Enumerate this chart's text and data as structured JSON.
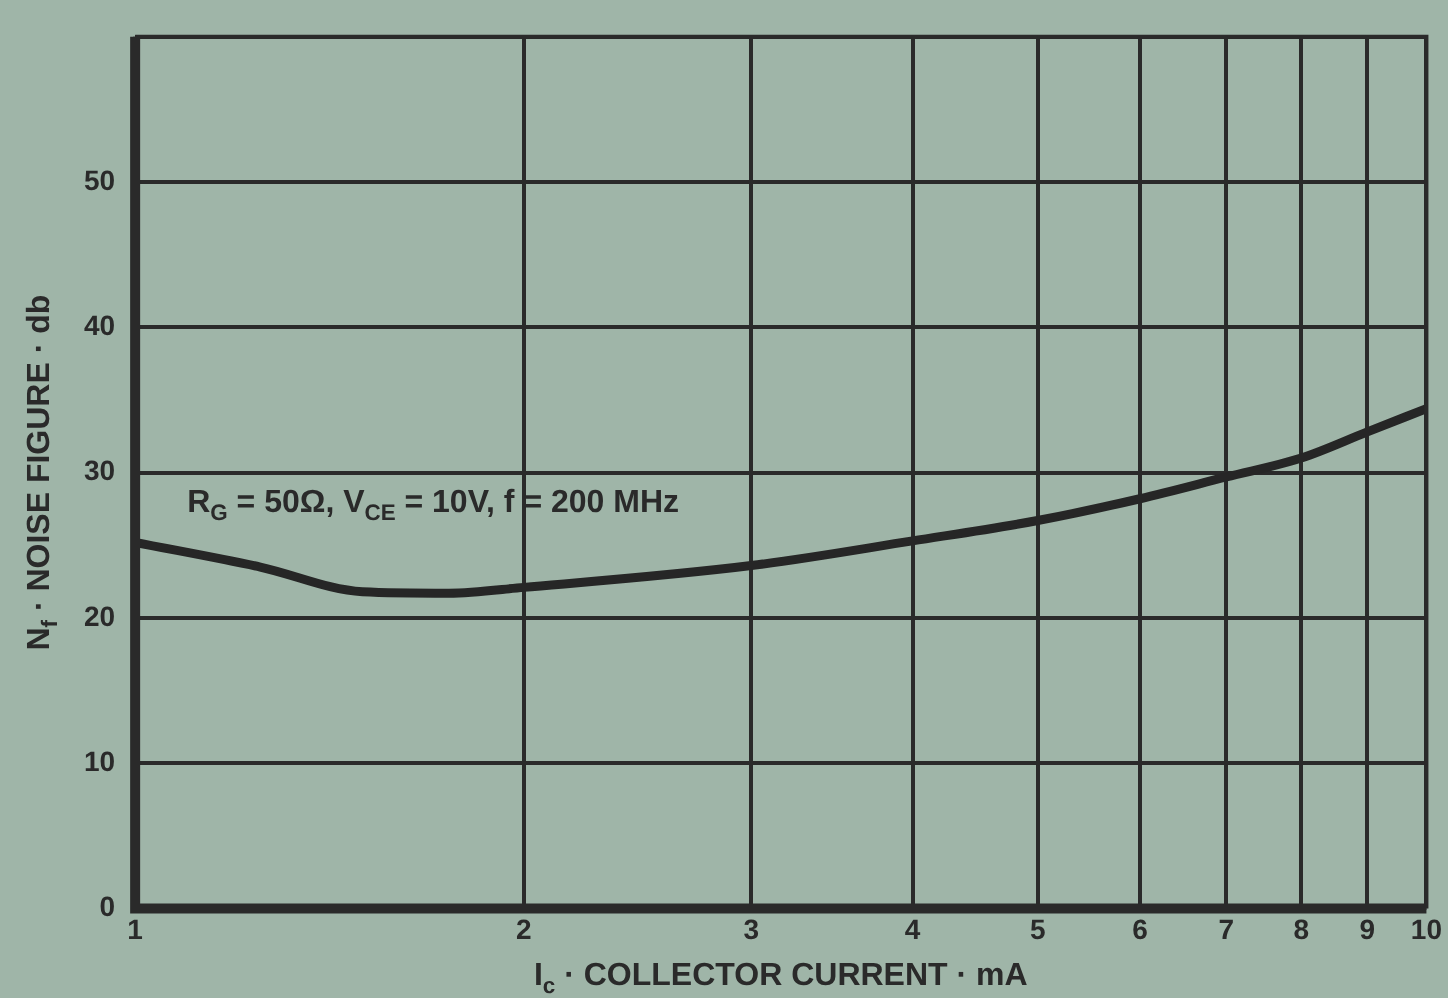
{
  "chart_data": {
    "type": "line",
    "xlabel": "I$_{c}$ · COLLECTOR CURRENT · mA",
    "ylabel": "N$_{f}$ · NOISE FIGURE · db",
    "annotations": [
      "R$_{G}$ = 50Ω, V$_{CE}$ = 10V, f = 200 MHz"
    ],
    "x": [
      1,
      1.25,
      1.5,
      1.75,
      2,
      3,
      4,
      5,
      6,
      7,
      8,
      9,
      10
    ],
    "series": [
      {
        "color": "#262626",
        "values": [
          25.2,
          23.5,
          21.8,
          21.7,
          22.1,
          23.6,
          25.3,
          26.7,
          28.2,
          29.7,
          31.0,
          32.8,
          34.4
        ]
      }
    ],
    "log": "x",
    "xlim": [
      1,
      10
    ],
    "xticks": [
      1,
      2,
      3,
      4,
      5,
      6,
      7,
      8,
      9,
      10
    ],
    "ylim": [
      0,
      60
    ],
    "yticks": [
      0,
      10,
      20,
      30,
      40,
      50,
      {
        "value": 60,
        "label": null
      }
    ],
    "grid": true,
    "legend": false,
    "marker": "none",
    "line_style": "solid"
  }
}
